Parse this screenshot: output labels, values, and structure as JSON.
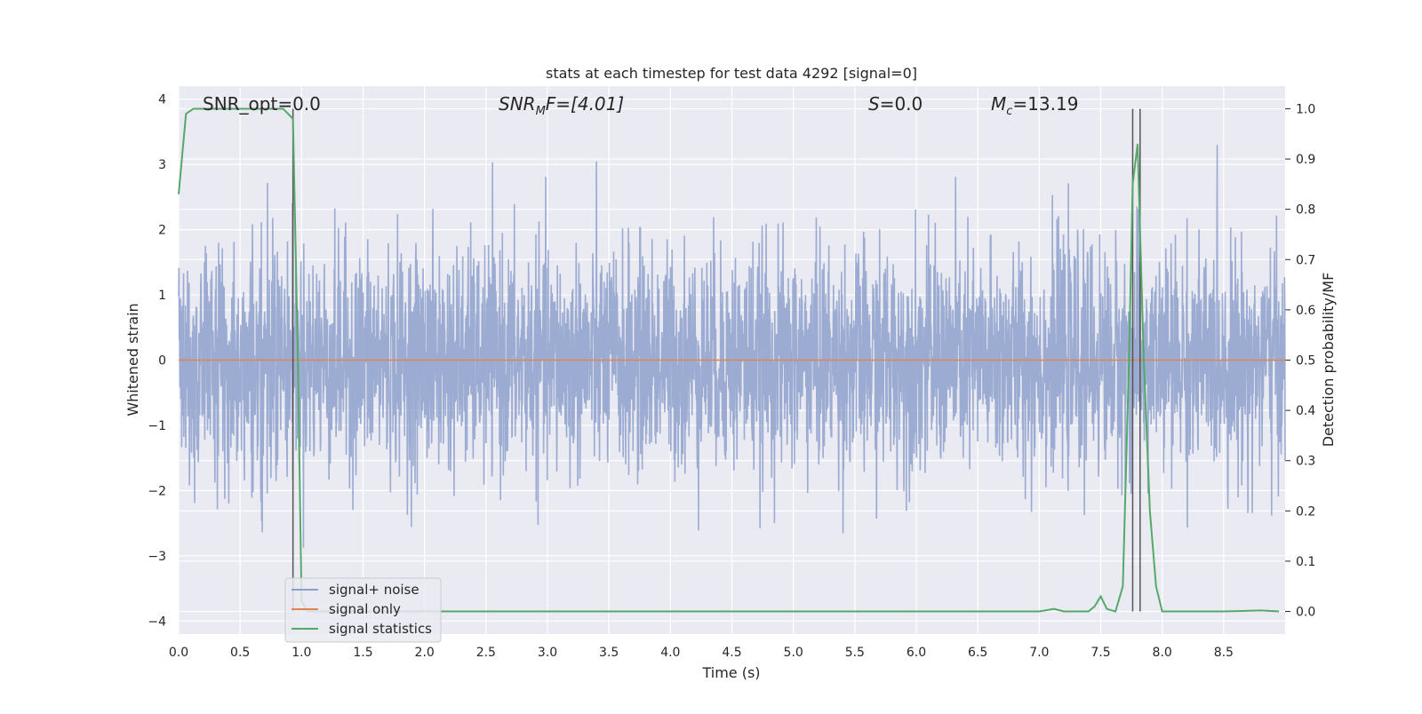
{
  "chart_data": {
    "type": "line",
    "title": "stats at each timestep for test data 4292 [signal=0]",
    "xlabel": "Time (s)",
    "ylabel": "Whitened strain",
    "y2label": "Detection probability/MF",
    "xlim": [
      0.0,
      9.0
    ],
    "ylim": [
      -4.2,
      4.2
    ],
    "y2lim": [
      -0.045,
      1.045
    ],
    "x_ticks": [
      "0.0",
      "0.5",
      "1.0",
      "1.5",
      "2.0",
      "2.5",
      "3.0",
      "3.5",
      "4.0",
      "4.5",
      "5.0",
      "5.5",
      "6.0",
      "6.5",
      "7.0",
      "7.5",
      "8.0",
      "8.5"
    ],
    "y_ticks": [
      "4",
      "3",
      "2",
      "1",
      "0",
      "−1",
      "−2",
      "−3",
      "−4"
    ],
    "y2_ticks": [
      "1.0",
      "0.9",
      "0.8",
      "0.7",
      "0.6",
      "0.5",
      "0.4",
      "0.3",
      "0.2",
      "0.1",
      "0.0"
    ],
    "grid": true,
    "legend_position": "lower-left",
    "annotations": {
      "snr_opt": "SNR_opt=0.0",
      "snr_mf_base": "SNR",
      "snr_mf_sub": "M",
      "snr_mf_rest": "F=[4.01]",
      "s_sym": "S",
      "s_rest": "=0.0",
      "mc_base": "M",
      "mc_sub": "c",
      "mc_rest": "=13.19"
    },
    "series": [
      {
        "name": "signal+ noise",
        "color": "#8da0cb",
        "kind": "noise",
        "amplitude_std": 0.85,
        "y_range": [
          -3.3,
          3.3
        ]
      },
      {
        "name": "signal only",
        "color": "#dd8452",
        "kind": "constant",
        "value": 0.0
      },
      {
        "name": "signal statistics",
        "color": "#55a868",
        "axis": "right",
        "x": [
          0.0,
          0.06,
          0.12,
          0.25,
          0.4,
          0.6,
          0.85,
          0.93,
          0.97,
          1.0,
          1.05,
          2.0,
          4.0,
          6.0,
          7.0,
          7.12,
          7.2,
          7.4,
          7.45,
          7.5,
          7.55,
          7.62,
          7.68,
          7.73,
          7.76,
          7.8,
          7.85,
          7.9,
          7.95,
          8.0,
          8.5,
          8.8,
          8.95
        ],
        "values": [
          0.83,
          0.99,
          1.0,
          1.0,
          1.0,
          1.0,
          1.0,
          0.98,
          0.5,
          0.02,
          0.0,
          0.0,
          0.0,
          0.0,
          0.0,
          0.005,
          0.0,
          0.0,
          0.01,
          0.03,
          0.005,
          0.0,
          0.05,
          0.5,
          0.85,
          0.93,
          0.5,
          0.2,
          0.05,
          0.0,
          0.0,
          0.002,
          0.0
        ]
      }
    ],
    "vertical_lines_x": [
      0.93,
      7.76,
      7.82
    ]
  }
}
